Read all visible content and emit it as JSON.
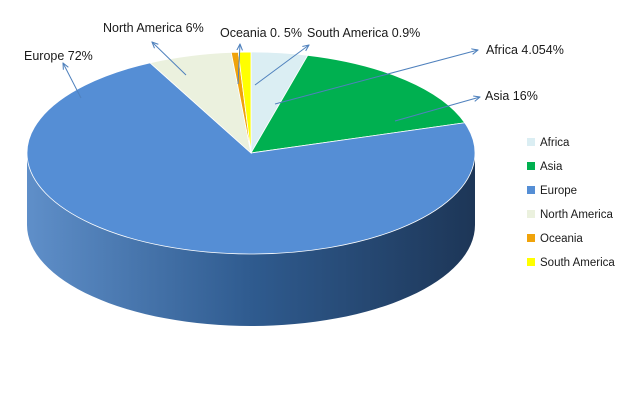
{
  "chart_data": {
    "type": "pie",
    "title": "",
    "categories": [
      "Africa",
      "Asia",
      "Europe",
      "North America",
      "Oceania",
      "South America"
    ],
    "values": [
      4.054,
      16,
      72,
      6,
      0.5,
      0.9
    ],
    "data_labels": [
      "Africa 4.054%",
      "Asia 16%",
      "Europe 72%",
      "North America 6%",
      "Oceania 0. 5%",
      "South America 0.9%"
    ],
    "colors": [
      "#dbeef3",
      "#00b050",
      "#558ed5",
      "#ebf1de",
      "#f0a30a",
      "#ffff00"
    ],
    "legend": "right",
    "style": "3d"
  }
}
